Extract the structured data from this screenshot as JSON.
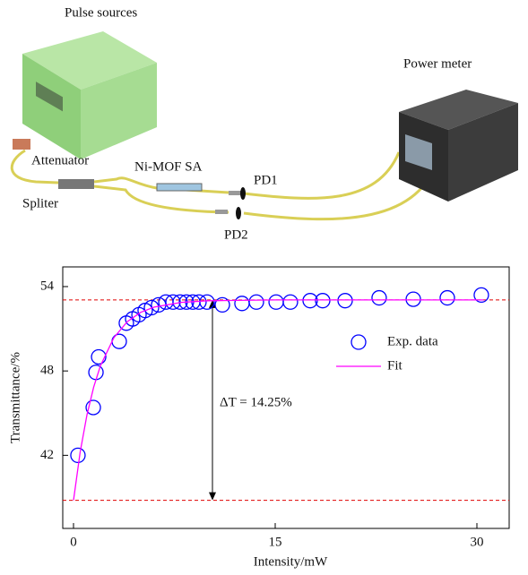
{
  "diagram": {
    "labels": {
      "pulse_sources": "Pulse sources",
      "power_meter": "Power meter",
      "attenuator": "Attenuator",
      "sa": "Ni-MOF SA",
      "pd1": "PD1",
      "splitter": "Spliter",
      "pd2": "PD2"
    }
  },
  "chart_data": {
    "type": "scatter",
    "x_label": "Intensity/mW",
    "y_label": "Transmittance/%",
    "annotation": "ΔT = 14.25%",
    "xlim": [
      -0.8,
      32.4
    ],
    "ylim": [
      36.8,
      55.4
    ],
    "xticks": [
      0,
      15,
      30
    ],
    "yticks": [
      42,
      48,
      54
    ],
    "reference_lines": [
      53.05,
      38.8
    ],
    "reference_color": "#e00000",
    "series": [
      {
        "name": "Exp. data",
        "type": "scatter",
        "color": "#0000ff",
        "x": [
          0.33,
          1.47,
          1.67,
          1.87,
          3.4,
          3.93,
          4.4,
          4.87,
          5.33,
          5.8,
          6.33,
          6.87,
          7.4,
          7.93,
          8.4,
          8.87,
          9.33,
          9.93,
          11.07,
          12.53,
          13.6,
          15.07,
          16.13,
          17.6,
          18.53,
          20.2,
          22.73,
          25.27,
          27.8,
          30.33
        ],
        "values": [
          42.0,
          45.4,
          47.9,
          49.0,
          50.1,
          51.4,
          51.7,
          52.0,
          52.3,
          52.5,
          52.7,
          52.9,
          52.9,
          52.9,
          52.9,
          52.9,
          52.9,
          52.9,
          52.7,
          52.8,
          52.9,
          52.9,
          52.9,
          53.0,
          53.0,
          53.0,
          53.2,
          53.1,
          53.2,
          53.4
        ]
      },
      {
        "name": "Fit",
        "type": "line",
        "color": "#ff00ff",
        "x": [
          0,
          0.5,
          1,
          1.5,
          2,
          3,
          4,
          5,
          6,
          8,
          10,
          15,
          30.5
        ],
        "values": [
          38.8,
          42.26,
          44.87,
          46.85,
          48.36,
          50.36,
          51.51,
          52.17,
          52.54,
          52.88,
          52.99,
          53.05,
          53.05
        ]
      }
    ]
  }
}
